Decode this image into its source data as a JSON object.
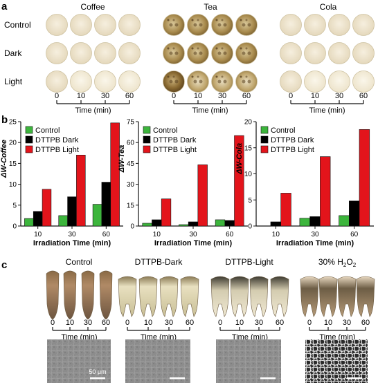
{
  "panel_a": {
    "label": "a",
    "columns": [
      "Coffee",
      "Tea",
      "Cola"
    ],
    "rows": [
      "Control",
      "Dark",
      "Light"
    ],
    "times": [
      "0",
      "10",
      "30",
      "60"
    ],
    "time_axis_label": "Time (min)"
  },
  "panel_b": {
    "label": "b",
    "legend": [
      "Control",
      "DTTPB Dark",
      "DTTPB Light"
    ],
    "colors": {
      "control": "#3cb53c",
      "dark": "#000000",
      "light": "#e3141b"
    }
  },
  "chart_data": [
    {
      "type": "bar",
      "ylabel_symbol": "ΔW",
      "ylabel_suffix": "-Coffee",
      "xlabel": "Irradiation Time (min)",
      "categories": [
        "10",
        "30",
        "60"
      ],
      "ylim": [
        0,
        25
      ],
      "yticks": [
        0,
        5,
        10,
        15,
        20,
        25
      ],
      "series": [
        {
          "name": "Control",
          "values": [
            1.8,
            2.5,
            5.2
          ]
        },
        {
          "name": "DTTPB Dark",
          "values": [
            3.5,
            7.0,
            10.5
          ]
        },
        {
          "name": "DTTPB Light",
          "values": [
            8.8,
            17.0,
            24.7
          ]
        }
      ]
    },
    {
      "type": "bar",
      "ylabel_symbol": "ΔW",
      "ylabel_suffix": "-Tea",
      "xlabel": "Irradiation Time (min)",
      "categories": [
        "10",
        "30",
        "60"
      ],
      "ylim": [
        0,
        75
      ],
      "yticks": [
        0,
        15,
        30,
        45,
        60,
        75
      ],
      "series": [
        {
          "name": "Control",
          "values": [
            2.0,
            1.0,
            4.5
          ]
        },
        {
          "name": "DTTPB Dark",
          "values": [
            4.5,
            3.0,
            4.0
          ]
        },
        {
          "name": "DTTPB Light",
          "values": [
            19.5,
            44.0,
            65.0
          ]
        }
      ]
    },
    {
      "type": "bar",
      "ylabel_symbol": "ΔW",
      "ylabel_suffix": "-Cola",
      "xlabel": "Irradiation Time (min)",
      "categories": [
        "10",
        "30",
        "60"
      ],
      "ylim": [
        0,
        20
      ],
      "yticks": [
        0,
        5,
        10,
        15,
        20
      ],
      "series": [
        {
          "name": "Control",
          "values": [
            0.0,
            1.5,
            2.0
          ]
        },
        {
          "name": "DTTPB Dark",
          "values": [
            0.8,
            1.8,
            4.8
          ]
        },
        {
          "name": "DTTPB Light",
          "values": [
            6.3,
            13.3,
            18.5
          ]
        }
      ]
    }
  ],
  "panel_c": {
    "label": "c",
    "groups": [
      {
        "title": "Control"
      },
      {
        "title": "DTTPB-Dark"
      },
      {
        "title": "DTTPB-Light"
      },
      {
        "title_main": "30% H",
        "title_sub": "2",
        "title_tail": "O",
        "title_sub2": "2"
      }
    ],
    "times": [
      "0",
      "10",
      "30",
      "60"
    ],
    "time_axis_label": "Time (min)",
    "scale_bar_label": "50 μm"
  }
}
